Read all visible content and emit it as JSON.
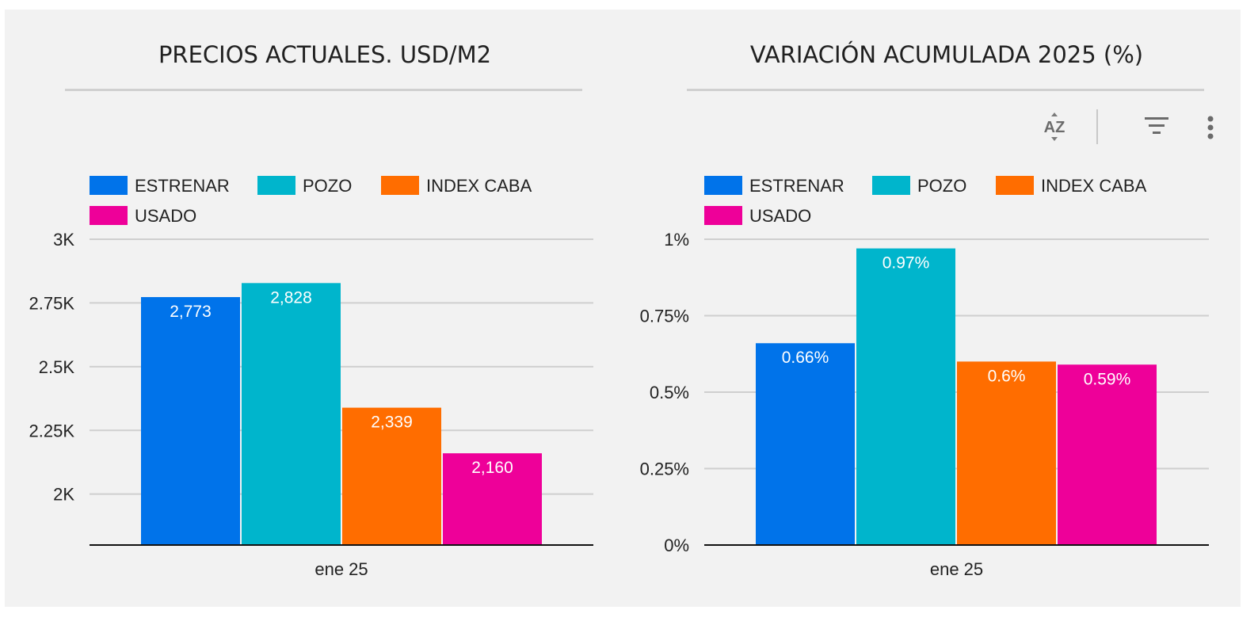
{
  "chart_data": [
    {
      "type": "bar",
      "title": "PRECIOS ACTUALES. USD/M2",
      "categories": [
        "ene 25"
      ],
      "series": [
        {
          "name": "ESTRENAR",
          "values": [
            2773
          ],
          "label": "2,773"
        },
        {
          "name": "POZO",
          "values": [
            2828
          ],
          "label": "2,828"
        },
        {
          "name": "INDEX CABA",
          "values": [
            2339
          ],
          "label": "2,339"
        },
        {
          "name": "USADO",
          "values": [
            2160
          ],
          "label": "2,160"
        }
      ],
      "colors": [
        "#0073ea",
        "#00b5cc",
        "#ff6d00",
        "#ee0099"
      ],
      "ylim": [
        1800,
        3000
      ],
      "yticks": [
        2000,
        2250,
        2500,
        2750,
        3000
      ],
      "ytick_labels": [
        "2K",
        "2.25K",
        "2.5K",
        "2.75K",
        "3K"
      ],
      "xlabel": "",
      "ylabel": "",
      "grid": true,
      "legend": "top-left"
    },
    {
      "type": "bar",
      "title": "VARIACIÓN ACUMULADA 2025 (%)",
      "categories": [
        "ene 25"
      ],
      "series": [
        {
          "name": "ESTRENAR",
          "values": [
            0.66
          ],
          "label": "0.66%"
        },
        {
          "name": "POZO",
          "values": [
            0.97
          ],
          "label": "0.97%"
        },
        {
          "name": "INDEX CABA",
          "values": [
            0.6
          ],
          "label": "0.6%"
        },
        {
          "name": "USADO",
          "values": [
            0.59
          ],
          "label": "0.59%"
        }
      ],
      "colors": [
        "#0073ea",
        "#00b5cc",
        "#ff6d00",
        "#ee0099"
      ],
      "ylim": [
        0,
        1
      ],
      "yticks": [
        0,
        0.25,
        0.5,
        0.75,
        1
      ],
      "ytick_labels": [
        "0%",
        "0.25%",
        "0.5%",
        "0.75%",
        "1%"
      ],
      "xlabel": "",
      "ylabel": "",
      "grid": true,
      "legend": "top-left"
    }
  ],
  "toolbar": {
    "sort_icon": "sort-az-icon",
    "filter_icon": "filter-icon",
    "more_icon": "more-vert-icon"
  }
}
